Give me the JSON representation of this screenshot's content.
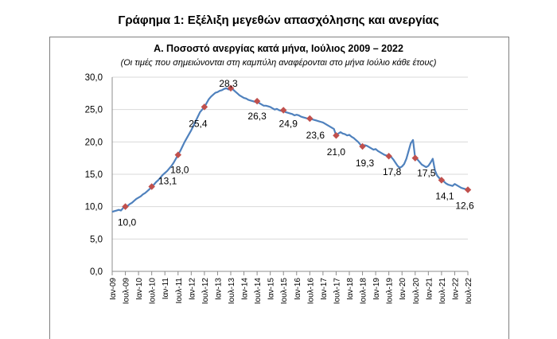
{
  "page": {
    "title": "Γράφημα 1: Εξέλιξη μεγεθών απασχόλησης και ανεργίας"
  },
  "chart_data": {
    "type": "line",
    "title": "Α. Ποσοστό ανεργίας κατά μήνα, Ιούλιος 2009 – 2022",
    "subtitle": "(Οι τιμές που σημειώνονται στη καμπύλη αναφέρονται στο μήνα Ιούλιο κάθε έτους)",
    "xlabel": "",
    "ylabel": "",
    "ylim": [
      0,
      30
    ],
    "yticks": [
      "0,0",
      "5,0",
      "10,0",
      "15,0",
      "20,0",
      "25,0",
      "30,0"
    ],
    "grid": true,
    "legend": "none",
    "line_color": "#4f81bd",
    "marker_color": "#c0504d",
    "x_tick_labels": [
      "Ιαν-09",
      "Ιουλ-09",
      "Ιαν-10",
      "Ιουλ-10",
      "Ιαν-11",
      "Ιουλ-11",
      "Ιαν-12",
      "Ιουλ-12",
      "Ιαν-13",
      "Ιουλ-13",
      "Ιαν-14",
      "Ιουλ-14",
      "Ιαν-15",
      "Ιουλ-15",
      "Ιαν-16",
      "Ιουλ-16",
      "Ιαν-17",
      "Ιουλ-17",
      "Ιαν-18",
      "Ιουλ-18",
      "Ιαν-19",
      "Ιουλ-19",
      "Ιαν-20",
      "Ιουλ-20",
      "Ιαν-21",
      "Ιουλ-21",
      "Ιαν-22",
      "Ιουλ-22"
    ],
    "series": [
      {
        "values": [
          9.2,
          9.3,
          9.4,
          9.5,
          9.4,
          9.8,
          10.0,
          10.1,
          10.4,
          10.6,
          10.9,
          11.2,
          11.4,
          11.6,
          11.9,
          12.1,
          12.4,
          12.7,
          13.1,
          13.4,
          13.8,
          14.1,
          14.5,
          14.9,
          15.2,
          15.5,
          15.9,
          16.3,
          16.8,
          17.4,
          18.0,
          18.6,
          19.3,
          20.0,
          20.6,
          21.2,
          21.8,
          22.5,
          23.2,
          23.9,
          24.6,
          25.0,
          25.4,
          26.0,
          26.6,
          27.0,
          27.3,
          27.6,
          27.7,
          27.9,
          28.0,
          28.2,
          28.3,
          28.1,
          28.3,
          28.1,
          27.8,
          27.5,
          27.2,
          27.0,
          26.8,
          26.7,
          26.5,
          26.4,
          26.3,
          26.2,
          26.3,
          26.0,
          25.8,
          25.6,
          25.6,
          25.5,
          25.4,
          25.2,
          25.0,
          25.1,
          24.9,
          24.8,
          24.9,
          24.6,
          24.5,
          24.4,
          24.3,
          24.1,
          24.2,
          24.1,
          23.9,
          23.8,
          23.7,
          23.6,
          23.6,
          23.5,
          23.4,
          23.3,
          23.2,
          23.1,
          23.0,
          22.8,
          22.6,
          22.4,
          22.2,
          22.0,
          21.0,
          21.3,
          21.5,
          21.3,
          21.2,
          21.0,
          21.1,
          20.8,
          20.6,
          20.3,
          20.0,
          19.6,
          19.3,
          19.5,
          19.4,
          19.2,
          19.0,
          18.8,
          18.9,
          18.6,
          18.4,
          18.2,
          18.0,
          17.9,
          17.8,
          17.7,
          17.3,
          16.8,
          16.3,
          16.0,
          16.2,
          16.6,
          17.4,
          18.6,
          19.8,
          20.3,
          17.5,
          17.3,
          16.9,
          16.5,
          16.3,
          16.1,
          16.3,
          16.8,
          17.4,
          15.6,
          14.8,
          14.4,
          14.1,
          13.9,
          13.6,
          13.4,
          13.3,
          13.2,
          13.5,
          13.3,
          13.1,
          12.9,
          12.8,
          12.7,
          12.6
        ]
      }
    ],
    "highlight_points": [
      {
        "index": 6,
        "value": 10.0,
        "label": "10,0"
      },
      {
        "index": 18,
        "value": 13.1,
        "label": "13,1"
      },
      {
        "index": 30,
        "value": 18.0,
        "label": "18,0"
      },
      {
        "index": 42,
        "value": 25.4,
        "label": "25,4"
      },
      {
        "index": 54,
        "value": 28.3,
        "label": "28,3"
      },
      {
        "index": 66,
        "value": 26.3,
        "label": "26,3"
      },
      {
        "index": 78,
        "value": 24.9,
        "label": "24,9"
      },
      {
        "index": 90,
        "value": 23.6,
        "label": "23,6"
      },
      {
        "index": 102,
        "value": 21.0,
        "label": "21,0"
      },
      {
        "index": 114,
        "value": 19.3,
        "label": "19,3"
      },
      {
        "index": 126,
        "value": 17.8,
        "label": "17,8"
      },
      {
        "index": 138,
        "value": 17.5,
        "label": "17,5"
      },
      {
        "index": 150,
        "value": 14.1,
        "label": "14,1"
      },
      {
        "index": 162,
        "value": 12.6,
        "label": "12,6"
      }
    ]
  }
}
